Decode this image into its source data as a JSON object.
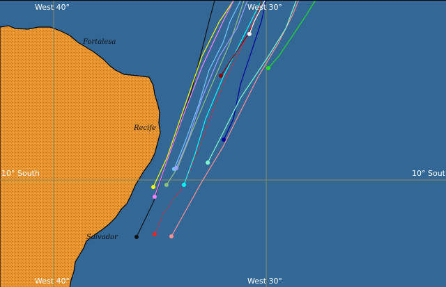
{
  "grid": {
    "meridians": [
      {
        "lon": -40,
        "label": "West 40°"
      },
      {
        "lon": -30,
        "label": "West 30°"
      }
    ],
    "parallels": [
      {
        "lat": -10,
        "label": "10° South"
      }
    ],
    "line_color": "#8b8b5a"
  },
  "colors": {
    "ocean": "#336796",
    "land": "#e8962e",
    "coast": "#000000"
  },
  "cities": [
    {
      "name": "Fortalesa"
    },
    {
      "name": "Recife"
    },
    {
      "name": "Salvador"
    }
  ],
  "tracks": [
    {
      "color": "#111111",
      "dashed": false,
      "points": [
        [
          -36.1,
          -12.69
        ],
        [
          -35.31,
          -11.05
        ],
        [
          -34.66,
          -9.08
        ],
        [
          -33.51,
          -5.8
        ],
        [
          -32.69,
          -2.52
        ],
        [
          -32.43,
          -1.54
        ]
      ]
    },
    {
      "color": "#ff2020",
      "dashed": true,
      "points": [
        [
          -35.25,
          -12.56
        ],
        [
          -34.82,
          -11.54
        ],
        [
          -33.87,
          -10.26
        ],
        [
          -33.02,
          -8.1
        ],
        [
          -32.03,
          -5.48
        ],
        [
          -30.89,
          -3.18
        ],
        [
          -30.23,
          -1.54
        ]
      ]
    },
    {
      "color": "#ff9090",
      "dashed": false,
      "points": [
        [
          -34.46,
          -12.66
        ],
        [
          -33.84,
          -11.54
        ],
        [
          -33.02,
          -10.07
        ],
        [
          -32.03,
          -8.43
        ],
        [
          -31.38,
          -7.11
        ],
        [
          -30.39,
          -5.15
        ],
        [
          -29.41,
          -3.51
        ],
        [
          -28.75,
          -2.2
        ],
        [
          -28.49,
          -1.54
        ]
      ]
    },
    {
      "color": "#ffff00",
      "dashed": false,
      "points": [
        [
          -35.31,
          -10.33
        ],
        [
          -34.66,
          -8.92
        ],
        [
          -33.93,
          -6.79
        ],
        [
          -33.02,
          -4.16
        ],
        [
          -32.2,
          -2.52
        ],
        [
          -31.54,
          -1.54
        ]
      ]
    },
    {
      "color": "#ff80ff",
      "dashed": false,
      "points": [
        [
          -35.25,
          -10.79
        ],
        [
          -34.66,
          -9.08
        ],
        [
          -33.84,
          -6.79
        ],
        [
          -33.02,
          -4.66
        ],
        [
          -32.03,
          -2.52
        ],
        [
          -31.54,
          -1.54
        ]
      ]
    },
    {
      "color": "#8fbf7f",
      "dashed": false,
      "points": [
        [
          -34.69,
          -10.23
        ],
        [
          -34.16,
          -9.41
        ],
        [
          -33.51,
          -7.77
        ],
        [
          -32.69,
          -5.8
        ],
        [
          -31.7,
          -3.51
        ],
        [
          -31.05,
          -1.54
        ]
      ]
    },
    {
      "color": "#70c8ff",
      "dashed": false,
      "points": [
        [
          -34.33,
          -9.48
        ],
        [
          -33.84,
          -8.26
        ],
        [
          -33.18,
          -6.46
        ],
        [
          -32.69,
          -4.82
        ],
        [
          -32.03,
          -3.51
        ],
        [
          -31.7,
          -2.52
        ],
        [
          -31.21,
          -1.54
        ]
      ]
    },
    {
      "color": "#a0a0ff",
      "dashed": false,
      "points": [
        [
          -34.23,
          -9.44
        ],
        [
          -33.67,
          -8.1
        ],
        [
          -33.02,
          -6.13
        ],
        [
          -32.2,
          -4.16
        ],
        [
          -31.38,
          -2.85
        ],
        [
          -30.89,
          -1.54
        ]
      ]
    },
    {
      "color": "#00ffff",
      "dashed": false,
      "points": [
        [
          -33.87,
          -10.23
        ],
        [
          -33.34,
          -8.75
        ],
        [
          -32.85,
          -7.11
        ],
        [
          -32.03,
          -5.15
        ],
        [
          -31.05,
          -3.18
        ],
        [
          -30.23,
          -1.54
        ]
      ]
    },
    {
      "color": "#8b0000",
      "dashed": false,
      "points": [
        [
          -32.13,
          -5.08
        ],
        [
          -31.54,
          -4.16
        ],
        [
          -30.89,
          -3.18
        ],
        [
          -30.39,
          -2.2
        ],
        [
          -30.23,
          -1.54
        ]
      ]
    },
    {
      "color": "#ffffff",
      "dashed": false,
      "points": [
        [
          -30.79,
          -3.11
        ],
        [
          -30.56,
          -2.52
        ],
        [
          -30.23,
          -1.87
        ],
        [
          -30.07,
          -1.54
        ]
      ]
    },
    {
      "color": "#0000a0",
      "dashed": false,
      "points": [
        [
          -32.0,
          -8.1
        ],
        [
          -31.54,
          -7.11
        ],
        [
          -31.21,
          -5.48
        ],
        [
          -30.66,
          -3.84
        ],
        [
          -30.23,
          -2.52
        ],
        [
          -30.0,
          -1.54
        ]
      ]
    },
    {
      "color": "#80ffd0",
      "dashed": false,
      "points": [
        [
          -32.75,
          -9.18
        ],
        [
          -32.03,
          -7.77
        ],
        [
          -31.21,
          -6.13
        ],
        [
          -29.9,
          -4.16
        ],
        [
          -29.08,
          -2.85
        ],
        [
          -28.59,
          -1.54
        ]
      ]
    },
    {
      "color": "#20e020",
      "dashed": false,
      "points": [
        [
          -29.9,
          -4.72
        ],
        [
          -29.41,
          -4.16
        ],
        [
          -28.75,
          -3.18
        ],
        [
          -28.1,
          -2.2
        ],
        [
          -27.7,
          -1.54
        ]
      ]
    }
  ]
}
